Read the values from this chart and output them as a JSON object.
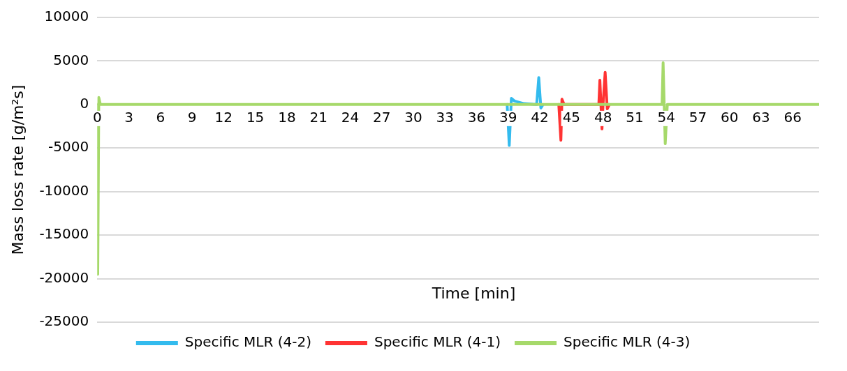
{
  "chart_data": {
    "type": "line",
    "xlabel": "Time [min]",
    "ylabel": "Mass loss rate [g/m²s]",
    "xlim": [
      0,
      68.5
    ],
    "xticks": [
      0,
      3,
      6,
      9,
      12,
      15,
      18,
      21,
      24,
      27,
      30,
      33,
      36,
      39,
      42,
      45,
      48,
      51,
      54,
      57,
      60,
      63,
      66
    ],
    "ylim": [
      -25000,
      10000
    ],
    "yticks": [
      -25000,
      -20000,
      -15000,
      -10000,
      -5000,
      0,
      5000,
      10000
    ],
    "grid": "y",
    "legend": "bottom",
    "marker": "none",
    "line_style": "solid",
    "series": [
      {
        "name": "Specific MLR (4-2)",
        "color": "#33bbee",
        "x": [
          38.9,
          39.1,
          39.3,
          39.6,
          40.5,
          41.7,
          41.9,
          42.1,
          42.3
        ],
        "values": [
          0,
          -4700,
          700,
          400,
          100,
          0,
          3100,
          -400,
          0
        ]
      },
      {
        "name": "Specific MLR (4-1)",
        "color": "#ff3333",
        "x": [
          43.8,
          44.0,
          44.1,
          44.3,
          47.6,
          47.7,
          47.9,
          48.0,
          48.2,
          48.4,
          48.6
        ],
        "values": [
          0,
          -4100,
          600,
          0,
          0,
          2800,
          -2800,
          0,
          3700,
          -500,
          0
        ]
      },
      {
        "name": "Specific MLR (4-3)",
        "color": "#a6d96a",
        "x": [
          0,
          0.05,
          0.15,
          0.3,
          53.6,
          53.7,
          53.9,
          54.1,
          68.5
        ],
        "values": [
          0,
          -19500,
          800,
          0,
          0,
          4800,
          -4500,
          0,
          0
        ]
      }
    ]
  }
}
